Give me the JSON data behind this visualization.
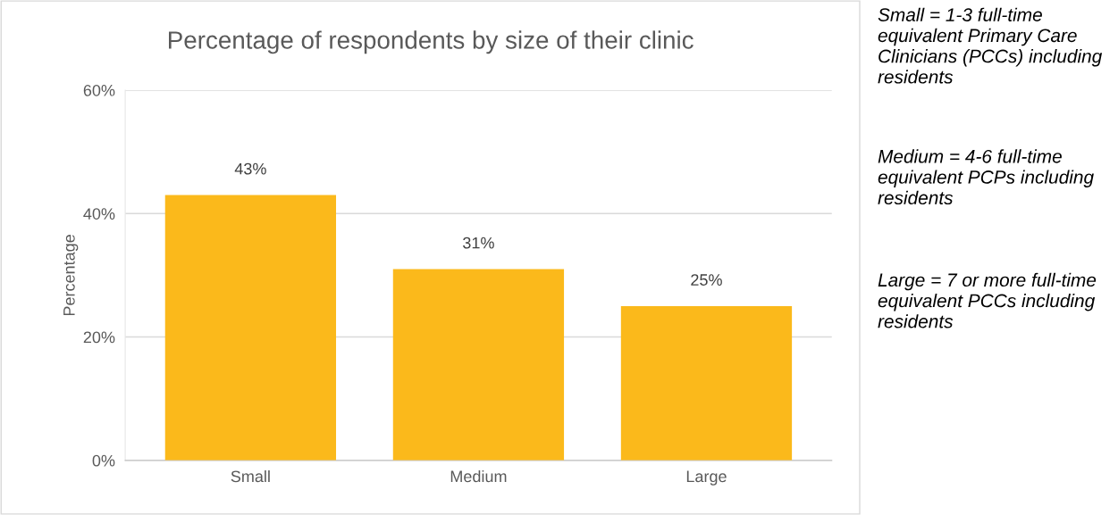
{
  "chart_data": {
    "type": "bar",
    "title": "Percentage of respondents by size of their clinic",
    "ylabel": "Percentage",
    "categories": [
      "Small",
      "Medium",
      "Large"
    ],
    "values": [
      43,
      31,
      25
    ],
    "value_labels": [
      "43%",
      "31%",
      "25%"
    ],
    "color": "#fbb91b",
    "ylim": [
      0,
      60
    ],
    "yticks": [
      {
        "value": 0,
        "label": "0%"
      },
      {
        "value": 20,
        "label": "20%"
      },
      {
        "value": 40,
        "label": "40%"
      },
      {
        "value": 60,
        "label": "60%"
      }
    ],
    "grid": "y",
    "legend": false,
    "annotations": [
      "Small = 1-3 full-time equivalent Primary Care Clinicians (PCCs) including residents",
      "Medium = 4-6 full-time equivalent PCPs including residents",
      "Large = 7 or more full-time equivalent PCCs including residents"
    ]
  }
}
